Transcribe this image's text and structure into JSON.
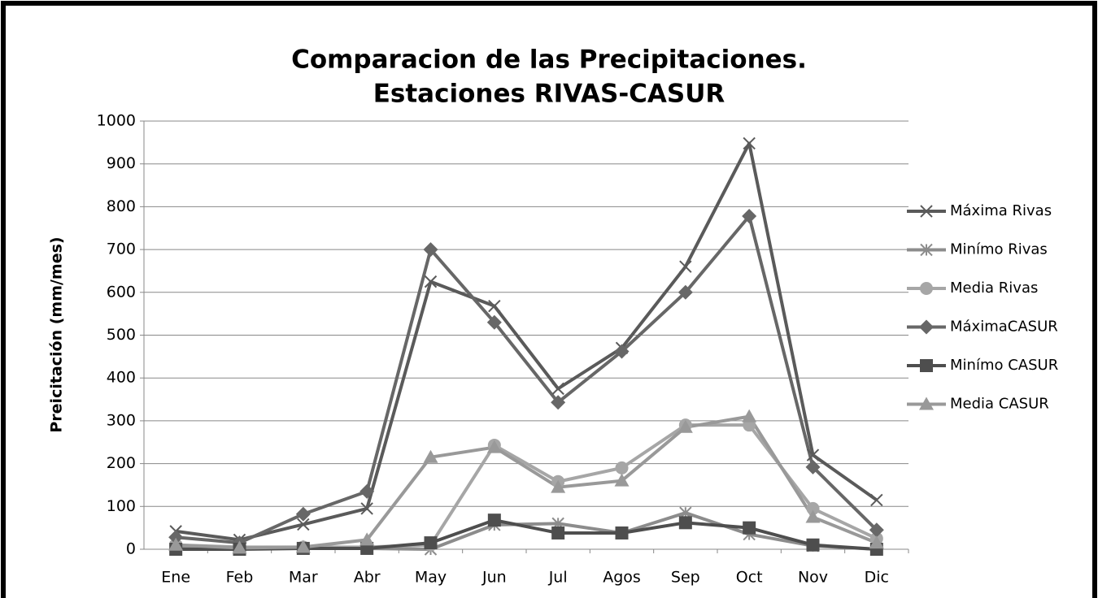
{
  "chart_data": {
    "type": "line",
    "title": "Comparacion de las Precipitaciones.",
    "subtitle": "Estaciones RIVAS-CASUR",
    "y_label": "Preicitación (mm/mes)",
    "categories": [
      "Ene",
      "Feb",
      "Mar",
      "Abr",
      "May",
      "Jun",
      "Jul",
      "Agos",
      "Sep",
      "Oct",
      "Nov",
      "Dic"
    ],
    "series": [
      {
        "name": "Máxima Rivas",
        "color": "#5a5a5a",
        "marker": "x",
        "values": [
          42,
          22,
          58,
          95,
          625,
          568,
          375,
          470,
          660,
          948,
          220,
          115
        ]
      },
      {
        "name": "Minímo Rivas",
        "color": "#8c8c8c",
        "marker": "asterisk",
        "values": [
          5,
          2,
          2,
          2,
          0,
          57,
          60,
          38,
          85,
          35,
          8,
          0
        ]
      },
      {
        "name": "Media Rivas",
        "color": "#a6a6a6",
        "marker": "circle",
        "values": [
          10,
          5,
          5,
          5,
          10,
          243,
          158,
          190,
          290,
          290,
          95,
          25
        ]
      },
      {
        "name": "MáximaCASUR",
        "color": "#676767",
        "marker": "diamond",
        "values": [
          28,
          15,
          82,
          135,
          700,
          530,
          343,
          462,
          600,
          778,
          192,
          45
        ]
      },
      {
        "name": "Minímo CASUR",
        "color": "#4e4e4e",
        "marker": "square",
        "values": [
          0,
          0,
          2,
          2,
          15,
          68,
          38,
          38,
          62,
          50,
          10,
          0
        ]
      },
      {
        "name": "Media CASUR",
        "color": "#999999",
        "marker": "triangle",
        "values": [
          10,
          3,
          5,
          22,
          215,
          238,
          145,
          160,
          285,
          310,
          75,
          15
        ]
      }
    ],
    "ylim": [
      0,
      1000
    ],
    "yticks": [
      0,
      100,
      200,
      300,
      400,
      500,
      600,
      700,
      800,
      900,
      1000
    ],
    "grid": true,
    "legend": "right"
  }
}
